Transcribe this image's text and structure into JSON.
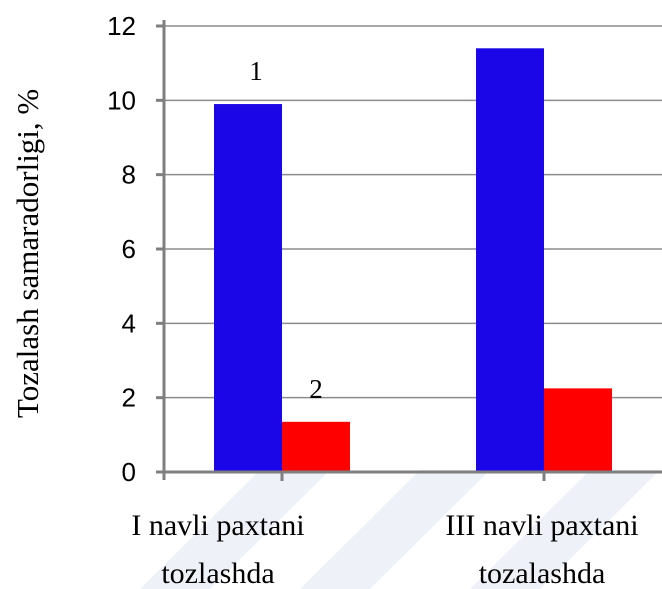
{
  "chart_data": {
    "type": "bar",
    "categories": [
      [
        "I navli paxtani",
        "tozlashda"
      ],
      [
        "III navli paxtani",
        "tozalashda"
      ]
    ],
    "series": [
      {
        "values": [
          9.9,
          11.4
        ],
        "color": "#1a06e6",
        "marker": "1"
      },
      {
        "values": [
          1.35,
          2.25
        ],
        "color": "#ff0000",
        "marker": "2"
      }
    ],
    "ylabel": "Tozalash samaradorligi, %",
    "ylim": [
      0,
      12
    ],
    "yticks": [
      "0",
      "2",
      "4",
      "6",
      "8",
      "10",
      "12"
    ],
    "grid": true,
    "colors": {
      "axis": "#7f7f7f",
      "grid": "#8c8c8c",
      "watermark": "#eef2f8"
    }
  }
}
